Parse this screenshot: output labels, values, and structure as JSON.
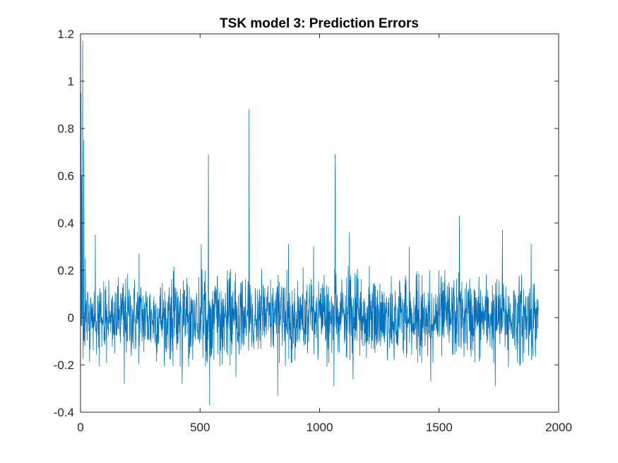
{
  "chart_data": {
    "type": "line",
    "title": "TSK model 3: Prediction Errors",
    "xlabel": "",
    "ylabel": "",
    "xlim": [
      0,
      2000
    ],
    "ylim": [
      -0.4,
      1.2
    ],
    "xticks": [
      0,
      500,
      1000,
      1500,
      2000
    ],
    "yticks": [
      -0.4,
      -0.2,
      0,
      0.2,
      0.4,
      0.6,
      0.8,
      1,
      1.2
    ],
    "xtick_labels": [
      "0",
      "500",
      "1000",
      "1500",
      "2000"
    ],
    "ytick_labels": [
      "-0.4",
      "-0.2",
      "0",
      "0.2",
      "0.4",
      "0.6",
      "0.8",
      "1",
      "1.2"
    ],
    "grid": false,
    "line_color": "#0072BD",
    "series": [
      {
        "n_points": 1915,
        "noise_std": 0.085,
        "spikes": [
          {
            "x": 2,
            "y": 0.95
          },
          {
            "x": 5,
            "y": 0.6
          },
          {
            "x": 9,
            "y": 1.17
          },
          {
            "x": 14,
            "y": 0.75
          },
          {
            "x": 20,
            "y": 0.25
          },
          {
            "x": 62,
            "y": 0.35
          },
          {
            "x": 183,
            "y": -0.28
          },
          {
            "x": 245,
            "y": 0.27
          },
          {
            "x": 425,
            "y": -0.28
          },
          {
            "x": 505,
            "y": 0.31
          },
          {
            "x": 535,
            "y": 0.69
          },
          {
            "x": 540,
            "y": -0.37
          },
          {
            "x": 650,
            "y": -0.25
          },
          {
            "x": 705,
            "y": 0.88
          },
          {
            "x": 825,
            "y": -0.33
          },
          {
            "x": 870,
            "y": 0.31
          },
          {
            "x": 975,
            "y": 0.3
          },
          {
            "x": 1065,
            "y": 0.69
          },
          {
            "x": 1060,
            "y": -0.29
          },
          {
            "x": 1125,
            "y": 0.36
          },
          {
            "x": 1140,
            "y": -0.26
          },
          {
            "x": 1375,
            "y": 0.3
          },
          {
            "x": 1465,
            "y": -0.27
          },
          {
            "x": 1585,
            "y": 0.43
          },
          {
            "x": 1765,
            "y": 0.37
          },
          {
            "x": 1735,
            "y": -0.29
          },
          {
            "x": 1885,
            "y": 0.31
          },
          {
            "x": 1790,
            "y": -0.21
          }
        ]
      }
    ]
  }
}
